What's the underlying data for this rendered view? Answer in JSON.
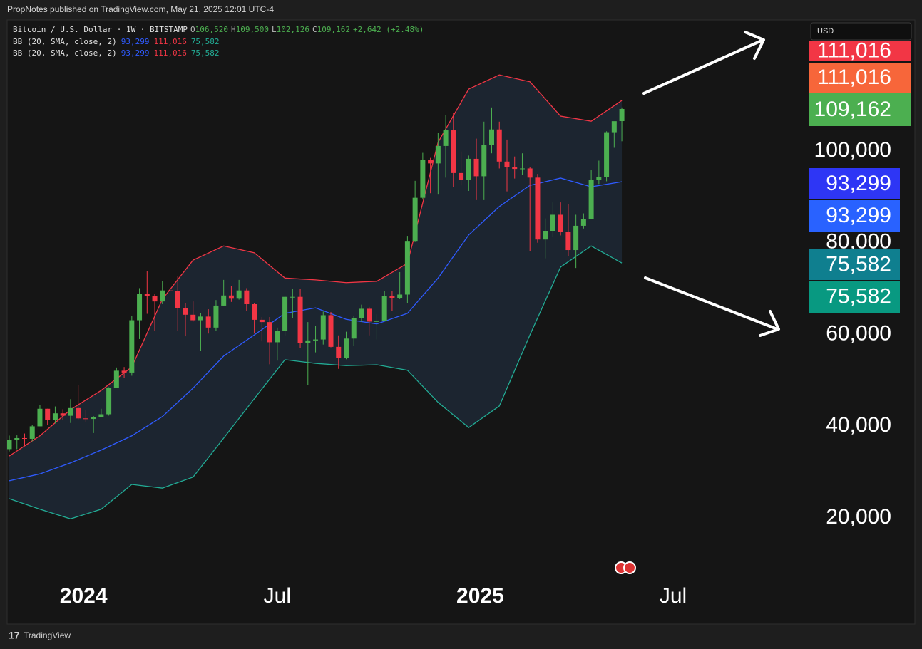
{
  "header": {
    "publisher": "PropNotes published on TradingView.com, May 21, 2025 12:01 UTC-4"
  },
  "footer": {
    "brand": "TradingView"
  },
  "chart_data": {
    "type": "candlestick",
    "title": "Bitcoin / U.S. Dollar · 1W · BITSTAMP",
    "ohlc_legend": [
      {
        "label": "O",
        "value": "106,520"
      },
      {
        "label": "H",
        "value": "109,500"
      },
      {
        "label": "L",
        "value": "102,126"
      },
      {
        "label": "C",
        "value": "109,162"
      }
    ],
    "change": "+2,642 (+2.48%)",
    "up_color": "#4caf50",
    "down_color": "#f23645",
    "open": [
      35000,
      37060,
      37400,
      37250,
      39970,
      43800,
      41350,
      42800,
      42270,
      43950,
      41700,
      41580,
      42000,
      42600,
      48300,
      52100,
      51700,
      63100,
      68900,
      68400,
      67200,
      69600,
      69400,
      65700,
      64300,
      63100,
      63900,
      61500,
      66300,
      68500,
      67800,
      69600,
      66600,
      63200,
      62700,
      58300,
      60800,
      68200,
      68200,
      58100,
      58700,
      58900,
      64200,
      57300,
      54800,
      59100,
      63600,
      65600,
      62800,
      62900,
      68400,
      67900,
      68700,
      80400,
      89800,
      98000,
      97300,
      101100,
      104500,
      95200,
      93700,
      98300,
      94500,
      101300,
      104700,
      97700,
      96500,
      96100,
      96200,
      94200,
      80700,
      82600,
      86100,
      82400,
      78400,
      83700,
      85200,
      93700,
      94300,
      104100,
      106520
    ],
    "high": [
      37950,
      38000,
      38400,
      40200,
      44700,
      43800,
      44300,
      43700,
      45900,
      49000,
      43600,
      42200,
      43800,
      48500,
      52800,
      52900,
      64000,
      70100,
      73800,
      68900,
      71700,
      71300,
      72800,
      66800,
      67200,
      64700,
      65500,
      67500,
      71900,
      70600,
      71900,
      70100,
      66900,
      63800,
      63800,
      61500,
      68400,
      70000,
      70000,
      62700,
      61800,
      65000,
      64900,
      59800,
      60600,
      64100,
      66500,
      66000,
      64400,
      69500,
      69500,
      73600,
      81500,
      93500,
      99600,
      98500,
      104000,
      107800,
      108300,
      99900,
      99000,
      102700,
      106400,
      109500,
      106400,
      102500,
      98800,
      99500,
      96500,
      95000,
      85300,
      88800,
      88800,
      88500,
      86100,
      86400,
      95800,
      97900,
      104300,
      105800,
      109500
    ],
    "low": [
      34500,
      35000,
      35700,
      36700,
      39970,
      40200,
      40600,
      41400,
      40700,
      41500,
      41000,
      38500,
      41900,
      42300,
      48300,
      50500,
      51000,
      59000,
      64500,
      60800,
      66600,
      64500,
      60700,
      59600,
      62800,
      56500,
      60200,
      60700,
      66200,
      67100,
      67600,
      65100,
      60200,
      58500,
      53500,
      54300,
      59800,
      63500,
      57100,
      49000,
      56100,
      57800,
      57200,
      52500,
      54600,
      57500,
      62700,
      59800,
      58900,
      62900,
      65100,
      67700,
      66800,
      80300,
      89400,
      90800,
      90500,
      94200,
      92200,
      92500,
      91300,
      89300,
      89300,
      99500,
      96200,
      91200,
      94000,
      94800,
      78200,
      80000,
      76600,
      81200,
      81600,
      77100,
      74500,
      83100,
      85100,
      92800,
      93400,
      100700,
      102126
    ],
    "close": [
      37060,
      37400,
      37250,
      39970,
      43800,
      41350,
      42800,
      42270,
      43950,
      41700,
      41580,
      42000,
      42600,
      48300,
      52100,
      51700,
      63100,
      68900,
      68400,
      67200,
      69600,
      69400,
      65700,
      64300,
      63100,
      63900,
      61500,
      66300,
      68500,
      67800,
      69600,
      66600,
      63200,
      62700,
      58300,
      60800,
      68200,
      68200,
      58100,
      58700,
      58900,
      64200,
      57300,
      54800,
      59100,
      63600,
      65600,
      62800,
      62900,
      68400,
      67900,
      68700,
      80400,
      89800,
      98000,
      97300,
      101100,
      104500,
      95200,
      93700,
      98300,
      94500,
      101300,
      104700,
      97700,
      96500,
      96100,
      96200,
      94200,
      80700,
      82600,
      86100,
      82400,
      78400,
      83700,
      85200,
      93700,
      94300,
      104100,
      106500,
      109162
    ],
    "bands": {
      "name": "BB (20, SMA, close, 2)",
      "fill_color": "#1c2530",
      "x": [
        0,
        4,
        8,
        12,
        16,
        20,
        24,
        28,
        32,
        36,
        40,
        44,
        48,
        52,
        56,
        60,
        64,
        68,
        72,
        76,
        80
      ],
      "series": [
        {
          "color": "#2f5bff",
          "values": [
            28100,
            29600,
            32000,
            34800,
            37900,
            42100,
            48300,
            55300,
            59900,
            64600,
            65800,
            63300,
            62300,
            64600,
            72300,
            81700,
            87900,
            92500,
            94100,
            92200,
            93299
          ]
        },
        {
          "color": "#f23645",
          "values": [
            33500,
            37900,
            43600,
            47800,
            52900,
            67700,
            76200,
            79300,
            77800,
            72300,
            71900,
            71300,
            71600,
            75500,
            101900,
            113500,
            116600,
            115100,
            107600,
            106500,
            111016
          ]
        },
        {
          "color": "#22ab94",
          "values": [
            24200,
            21900,
            19800,
            21900,
            27300,
            26500,
            28900,
            37400,
            46000,
            54500,
            53700,
            53200,
            53400,
            52200,
            45200,
            39700,
            44400,
            59900,
            74700,
            79300,
            75582
          ]
        }
      ],
      "legend_rows": [
        [
          "93,299",
          "111,016",
          "75,582"
        ],
        [
          "93,299",
          "111,016",
          "75,582"
        ]
      ]
    },
    "xlim": [
      -0.28,
      104.3
    ],
    "xticks": [
      {
        "value": 9.7,
        "label": "2024"
      },
      {
        "value": 35,
        "label": "Jul"
      },
      {
        "value": 61.5,
        "label": "2025"
      },
      {
        "value": 86.7,
        "label": "Jul"
      }
    ],
    "ylim": [
      8660,
      128580
    ],
    "yticks": [
      {
        "value": 20000,
        "label": "20,000"
      },
      {
        "value": 40000,
        "label": "40,000"
      },
      {
        "value": 60000,
        "label": "60,000"
      },
      {
        "value": 80000,
        "label": "80,000"
      },
      {
        "value": 100000,
        "label": "100,000"
      }
    ],
    "currency": "USD",
    "price_tags": [
      {
        "value": 111016,
        "label": "111,016",
        "color": "#f23645"
      },
      {
        "value": 111016,
        "label": "111,016",
        "color": "#f7663a"
      },
      {
        "value": 109162,
        "label": "109,162",
        "color": "#4caf50"
      },
      {
        "value": 93299,
        "label": "93,299",
        "color": "#2e36f5"
      },
      {
        "value": 93299,
        "label": "93,299",
        "color": "#2962ff"
      },
      {
        "value": 75582,
        "label": "75,582",
        "color": "#0f7f8f"
      },
      {
        "value": 75582,
        "label": "75,582",
        "color": "#089981"
      }
    ]
  }
}
